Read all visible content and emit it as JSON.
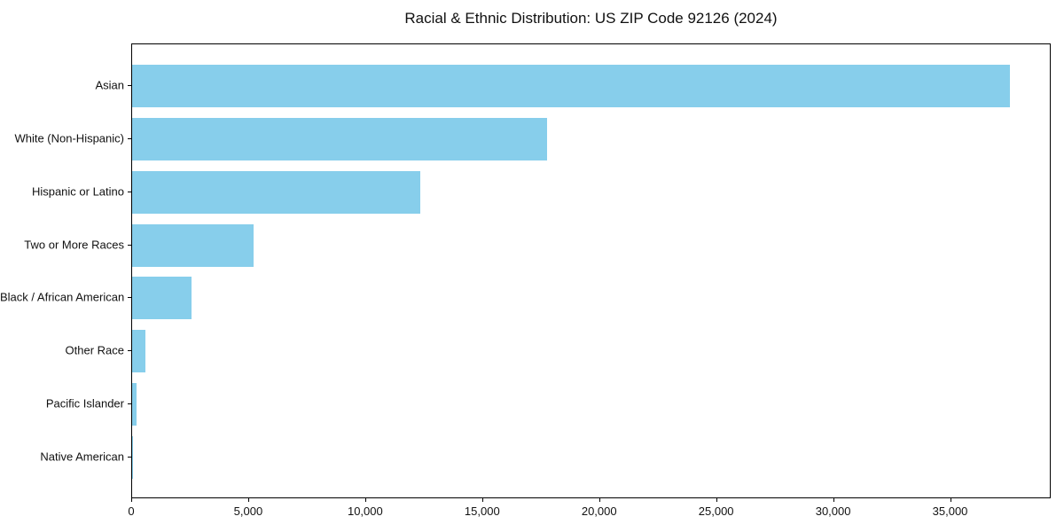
{
  "chart_data": {
    "type": "bar",
    "orientation": "horizontal",
    "title": "Racial & Ethnic Distribution: US ZIP Code 92126 (2024)",
    "categories": [
      "Asian",
      "White (Non-Hispanic)",
      "Hispanic or Latino",
      "Two or More Races",
      "Black / African American",
      "Other Race",
      "Pacific Islander",
      "Native American"
    ],
    "values": [
      37500,
      17750,
      12300,
      5200,
      2550,
      575,
      190,
      40
    ],
    "xlabel": "",
    "ylabel": "",
    "xlim": [
      0,
      39300
    ],
    "x_ticks": [
      0,
      5000,
      10000,
      15000,
      20000,
      25000,
      30000,
      35000
    ],
    "x_tick_labels": [
      "0",
      "5,000",
      "10,000",
      "15,000",
      "20,000",
      "25,000",
      "30,000",
      "35,000"
    ],
    "bar_color": "#87CEEB",
    "axis_color": "#000000",
    "text_color": "#111111",
    "grid": false,
    "legend": "none"
  }
}
